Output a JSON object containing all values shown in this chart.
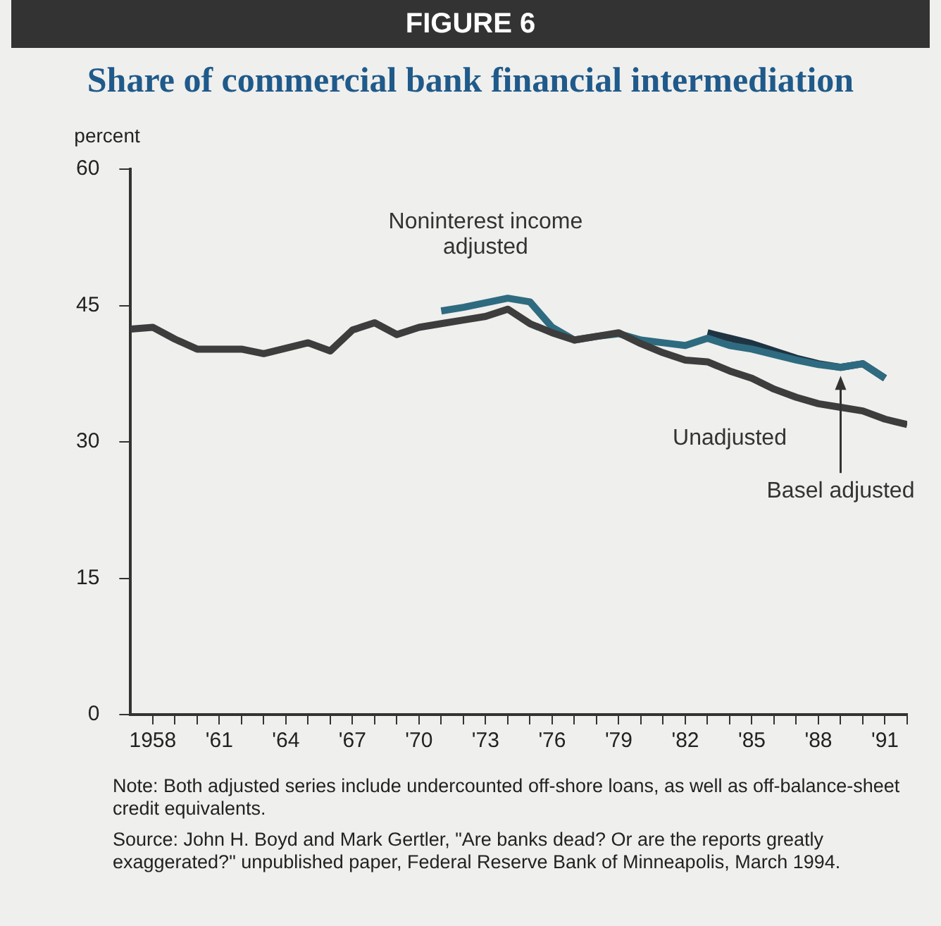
{
  "chart_data": {
    "type": "line",
    "title": "FIGURE 6",
    "subtitle": "Share of commercial bank financial intermediation",
    "ylabel": "percent",
    "xlim": [
      1957,
      1992
    ],
    "ylim": [
      0,
      60
    ],
    "yticks": [
      0,
      15,
      30,
      45,
      60
    ],
    "xticks": [
      {
        "value": 1958,
        "label": "1958"
      },
      {
        "value": 1959,
        "label": null
      },
      {
        "value": 1960,
        "label": null
      },
      {
        "value": 1961,
        "label": "'61"
      },
      {
        "value": 1962,
        "label": null
      },
      {
        "value": 1963,
        "label": null
      },
      {
        "value": 1964,
        "label": "'64"
      },
      {
        "value": 1965,
        "label": null
      },
      {
        "value": 1966,
        "label": null
      },
      {
        "value": 1967,
        "label": "'67"
      },
      {
        "value": 1968,
        "label": null
      },
      {
        "value": 1969,
        "label": null
      },
      {
        "value": 1970,
        "label": "'70"
      },
      {
        "value": 1971,
        "label": null
      },
      {
        "value": 1972,
        "label": null
      },
      {
        "value": 1973,
        "label": "'73"
      },
      {
        "value": 1974,
        "label": null
      },
      {
        "value": 1975,
        "label": null
      },
      {
        "value": 1976,
        "label": "'76"
      },
      {
        "value": 1977,
        "label": null
      },
      {
        "value": 1978,
        "label": null
      },
      {
        "value": 1979,
        "label": "'79"
      },
      {
        "value": 1980,
        "label": null
      },
      {
        "value": 1981,
        "label": null
      },
      {
        "value": 1982,
        "label": "'82"
      },
      {
        "value": 1983,
        "label": null
      },
      {
        "value": 1984,
        "label": null
      },
      {
        "value": 1985,
        "label": "'85"
      },
      {
        "value": 1986,
        "label": null
      },
      {
        "value": 1987,
        "label": null
      },
      {
        "value": 1988,
        "label": "'88"
      },
      {
        "value": 1989,
        "label": null
      },
      {
        "value": 1990,
        "label": null
      },
      {
        "value": 1991,
        "label": "'91"
      },
      {
        "value": 1992,
        "label": null
      }
    ],
    "grid": false,
    "legend": false,
    "marker": "none",
    "line_style": "solid",
    "series": [
      {
        "name": "Unadjusted",
        "color": "#3d3d3d",
        "x": [
          1957,
          1958,
          1959,
          1960,
          1961,
          1962,
          1963,
          1964,
          1965,
          1966,
          1967,
          1968,
          1969,
          1970,
          1971,
          1972,
          1973,
          1974,
          1975,
          1976,
          1977,
          1978,
          1979,
          1980,
          1981,
          1982,
          1983,
          1984,
          1985,
          1986,
          1987,
          1988,
          1989,
          1990,
          1991,
          1992
        ],
        "values": [
          42.4,
          42.6,
          41.3,
          40.2,
          40.2,
          40.2,
          39.7,
          40.3,
          40.9,
          40.0,
          42.3,
          43.1,
          41.8,
          42.6,
          43.0,
          43.4,
          43.8,
          44.6,
          43.0,
          42.0,
          41.2,
          41.6,
          42.0,
          40.8,
          39.8,
          39.0,
          38.8,
          37.8,
          37.0,
          35.8,
          34.9,
          34.2,
          33.8,
          33.4,
          32.5,
          31.9
        ]
      },
      {
        "name": "Noninterest income adjusted",
        "color": "#2e6b80",
        "x": [
          1971,
          1972,
          1973,
          1974,
          1975,
          1976,
          1977,
          1978,
          1979,
          1980,
          1981,
          1982,
          1983,
          1984,
          1985,
          1986,
          1987,
          1988,
          1989,
          1990,
          1991
        ],
        "values": [
          44.4,
          44.8,
          45.3,
          45.8,
          45.4,
          42.6,
          41.2,
          41.6,
          41.9,
          41.2,
          40.9,
          40.6,
          41.4,
          40.6,
          40.2,
          39.6,
          39.0,
          38.5,
          38.2,
          38.6,
          37.0
        ]
      },
      {
        "name": "Basel adjusted",
        "color": "#1f3442",
        "x": [
          1983,
          1984,
          1985,
          1986,
          1987,
          1988,
          1989,
          1990,
          1991
        ],
        "values": [
          42.0,
          41.4,
          40.8,
          40.0,
          39.2,
          38.6,
          38.2,
          38.6,
          37.0
        ]
      }
    ],
    "annotations": [
      "Note: Both adjusted series include undercounted off-shore loans, as well as off-balance-sheet credit equivalents.",
      "Source: John H. Boyd and Mark Gertler, \"Are banks dead? Or are the reports greatly exaggerated?\" unpublished paper, Federal Reserve Bank of Minneapolis, March 1994."
    ]
  }
}
